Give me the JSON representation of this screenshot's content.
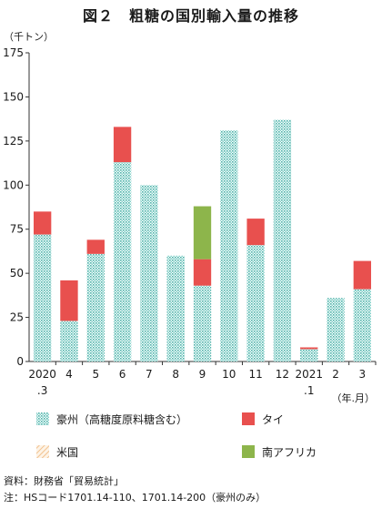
{
  "title": "図２　粗糖の国別輸入量の推移",
  "notes": {
    "source": "資料：財務省「貿易統計」",
    "note": "注：HSコード1701.14-110、1701.14-200（豪州のみ）"
  },
  "colors": {
    "australia": "#5fbfb6",
    "thailand": "#e8504e",
    "usa": "#f2c38c",
    "south_africa": "#8db54b",
    "axis": "#333333",
    "gridline": "#d9d9d9"
  },
  "chart_data": {
    "type": "bar",
    "stacked": true,
    "ylabel": "（千トン）",
    "xlabel": "（年.月）",
    "ylim": [
      0,
      175
    ],
    "yticks": [
      0,
      25,
      50,
      75,
      100,
      125,
      150,
      175
    ],
    "categories": [
      "2020.3",
      "4",
      "5",
      "6",
      "7",
      "8",
      "9",
      "10",
      "11",
      "12",
      "2021.1",
      "2",
      "3"
    ],
    "category_labels": [
      [
        "2020",
        ".3"
      ],
      [
        "4"
      ],
      [
        "5"
      ],
      [
        "6"
      ],
      [
        "7"
      ],
      [
        "8"
      ],
      [
        "9"
      ],
      [
        "10"
      ],
      [
        "11"
      ],
      [
        "12"
      ],
      [
        "2021",
        ".1"
      ],
      [
        "2"
      ],
      [
        "3"
      ]
    ],
    "series": [
      {
        "name": "豪州（高糖度原料糖含む）",
        "color_key": "australia",
        "pattern": "dotted",
        "values": [
          72,
          23,
          61,
          113,
          100,
          60,
          43,
          131,
          66,
          137,
          7,
          36,
          41
        ]
      },
      {
        "name": "タイ",
        "color_key": "thailand",
        "pattern": "solid",
        "values": [
          13,
          23,
          8,
          20,
          0,
          0,
          15,
          0,
          15,
          0,
          1,
          0,
          16
        ]
      },
      {
        "name": "米国",
        "color_key": "usa",
        "pattern": "hatched",
        "values": [
          0,
          0,
          0,
          0,
          0,
          0,
          0,
          0,
          0,
          0,
          0,
          0,
          0
        ]
      },
      {
        "name": "南アフリカ",
        "color_key": "south_africa",
        "pattern": "solid",
        "values": [
          0,
          0,
          0,
          0,
          0,
          0,
          30,
          0,
          0,
          0,
          0,
          0,
          0
        ]
      }
    ],
    "legend_position": "bottom",
    "grid": false
  }
}
